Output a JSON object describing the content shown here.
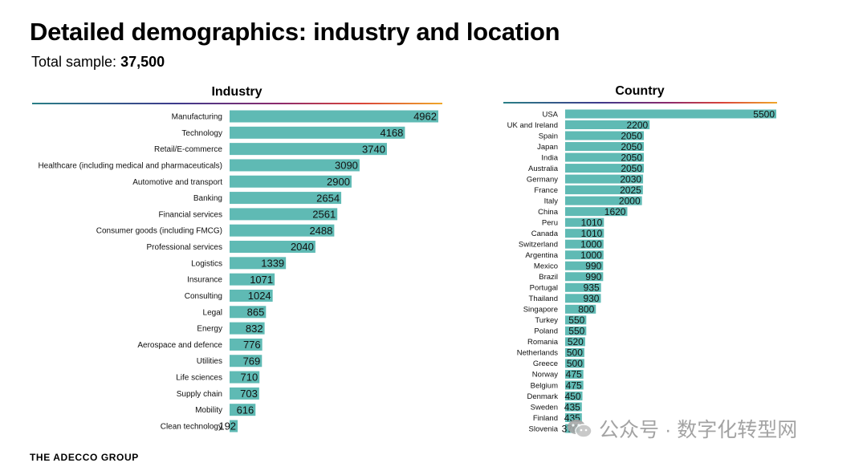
{
  "title": "Detailed demographics: industry and location",
  "sample": {
    "label": "Total sample: ",
    "value": "37,500"
  },
  "footer": "THE ADECCO GROUP",
  "watermark": {
    "text": "公众号 · 数字化转型网",
    "icon": "wechat-icon"
  },
  "colors": {
    "bar": "#5fbab4",
    "text": "#111111"
  },
  "chart_data": [
    {
      "type": "bar",
      "orientation": "horizontal",
      "title": "Industry",
      "categories": [
        "Manufacturing",
        "Technology",
        "Retail/E-commerce",
        "Healthcare (including medical and pharmaceuticals)",
        "Automotive and transport",
        "Banking",
        "Financial services",
        "Consumer goods (including FMCG)",
        "Professional services",
        "Logistics",
        "Insurance",
        "Consulting",
        "Legal",
        "Energy",
        "Aerospace and defence",
        "Utilities",
        "Life sciences",
        "Supply chain",
        "Mobility",
        "Clean technology"
      ],
      "values": [
        4962,
        4168,
        3740,
        3090,
        2900,
        2654,
        2561,
        2488,
        2040,
        1339,
        1071,
        1024,
        865,
        832,
        776,
        769,
        710,
        703,
        616,
        192
      ],
      "xlim": [
        0,
        4962
      ],
      "grid": false,
      "legend": "none"
    },
    {
      "type": "bar",
      "orientation": "horizontal",
      "title": "Country",
      "categories": [
        "USA",
        "UK and Ireland",
        "Spain",
        "Japan",
        "India",
        "Australia",
        "Germany",
        "France",
        "Italy",
        "China",
        "Peru",
        "Canada",
        "Switzerland",
        "Argentina",
        "Mexico",
        "Brazil",
        "Portugal",
        "Thailand",
        "Singapore",
        "Turkey",
        "Poland",
        "Romania",
        "Netherlands",
        "Greece",
        "Norway",
        "Belgium",
        "Denmark",
        "Sweden",
        "Finland",
        "Slovenia"
      ],
      "values": [
        5500,
        2200,
        2050,
        2050,
        2050,
        2050,
        2030,
        2025,
        2000,
        1620,
        1010,
        1010,
        1000,
        1000,
        990,
        990,
        935,
        930,
        800,
        550,
        550,
        520,
        500,
        500,
        475,
        475,
        450,
        435,
        435,
        370
      ],
      "xlim": [
        0,
        5500
      ],
      "grid": false,
      "legend": "none"
    }
  ]
}
